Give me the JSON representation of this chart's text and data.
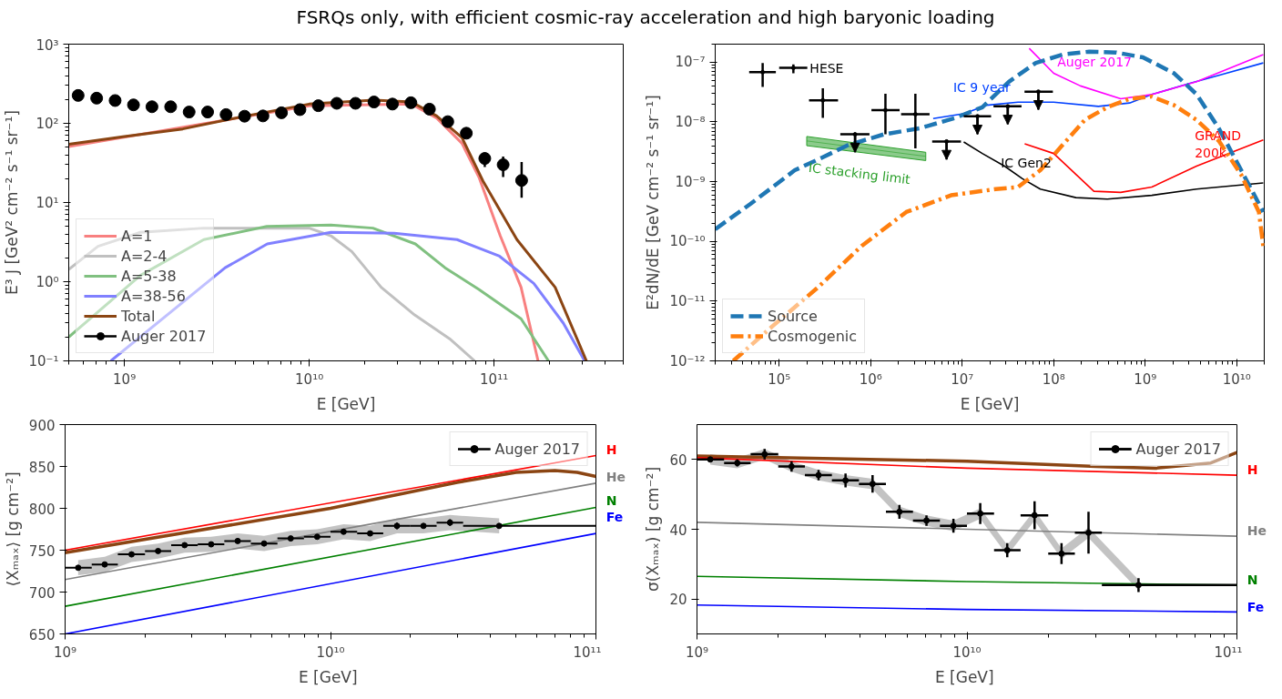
{
  "chart_data": [
    {
      "type": "line",
      "title": "FSRQs only, with efficient cosmic-ray acceleration and high baryonic loading",
      "xlabel": "E [GeV]",
      "ylabel": "E³ J [GeV² cm⁻² s⁻¹ sr⁻¹]",
      "log": "xy",
      "legend": "bottom left",
      "xlim": [
        500000000.0,
        500000000000.0
      ],
      "ylim": [
        0.1,
        1000
      ],
      "xticks": [
        {
          "value": 1000000000.0,
          "label": "10⁹"
        },
        {
          "value": 10000000000.0,
          "label": "10¹⁰"
        },
        {
          "value": 100000000000.0,
          "label": "10¹¹"
        }
      ],
      "yticks": [
        {
          "value": 0.1,
          "label": "10⁻¹"
        },
        {
          "value": 1,
          "label": "10⁰"
        },
        {
          "value": 10,
          "label": "10¹"
        },
        {
          "value": 100,
          "label": "10²"
        },
        {
          "value": 1000,
          "label": "10³"
        }
      ],
      "series": [
        {
          "name": "A=1",
          "color": "#f88080",
          "x": [
            500000000.0,
            10000000000.0,
            35800000000.0,
            48900000000.0,
            67000000000.0,
            82800000000.0,
            108000000000.0,
            140000000000.0,
            173000000000.0
          ],
          "values": [
            51,
            166,
            175,
            117,
            56,
            21,
            3.8,
            0.85,
            0.1
          ]
        },
        {
          "name": "A=2-4",
          "color": "#c0c0c0",
          "x": [
            500000000.0,
            720000000.0,
            1220000000.0,
            2690000000.0,
            10000000000.0,
            13100000000.0,
            17000000000.0,
            24500000000.0,
            37200000000.0,
            57500000000.0,
            78500000000.0
          ],
          "values": [
            1.43,
            2.8,
            4.2,
            4.75,
            4.75,
            3.8,
            2.4,
            0.85,
            0.38,
            0.19,
            0.1
          ]
        },
        {
          "name": "A=5-38",
          "color": "#80c080",
          "x": [
            500000000.0,
            1220000000.0,
            2690000000.0,
            5900000000.0,
            13100000000.0,
            22100000000.0,
            37500000000.0,
            54300000000.0,
            82800000000.0,
            140000000000.0,
            197000000000.0
          ],
          "values": [
            0.2,
            1.2,
            3.4,
            5.0,
            5.2,
            4.75,
            3.0,
            1.5,
            0.8,
            0.34,
            0.1
          ]
        },
        {
          "name": "A=38-56",
          "color": "#8080ff",
          "x": [
            845000000.0,
            3510000000.0,
            5930000000.0,
            13100000000.0,
            28800000000.0,
            63100000000.0,
            107000000000.0,
            164000000000.0,
            237000000000.0,
            309000000000.0
          ],
          "values": [
            0.1,
            1.5,
            3.0,
            4.2,
            4.1,
            3.4,
            2.1,
            0.95,
            0.3,
            0.1
          ]
        },
        {
          "name": "Total",
          "color": "#8b4513",
          "x": [
            500000000.0,
            1000000000.0,
            2070000000.0,
            4560000000.0,
            10000000000.0,
            22400000000.0,
            35800000000.0,
            48900000000.0,
            67000000000.0,
            87000000000.0,
            133000000000.0,
            214000000000.0,
            316000000000.0
          ],
          "values": [
            54.5,
            68,
            85,
            124,
            175,
            197,
            186,
            124,
            66,
            18.8,
            3.4,
            0.85,
            0.1
          ]
        },
        {
          "name": "Auger 2017",
          "type": "scatter",
          "marker": "circle",
          "color": "#000000",
          "x": [
            562000000.0,
            708000000.0,
            891000000.0,
            1120000000.0,
            1410000000.0,
            1780000000.0,
            2240000000.0,
            2820000000.0,
            3550000000.0,
            4470000000.0,
            5620000000.0,
            7080000000.0,
            8910000000.0,
            11200000000.0,
            14100000000.0,
            17800000000.0,
            22400000000.0,
            28200000000.0,
            35500000000.0,
            44700000000.0,
            56200000000.0,
            70800000000.0,
            89100000000.0,
            112000000000.0,
            141000000000.0
          ],
          "values": [
            225,
            208,
            194,
            171,
            162,
            162,
            139,
            139,
            129,
            123,
            124,
            136,
            149,
            167,
            179,
            179,
            186,
            175,
            182,
            151,
            105,
            75,
            36,
            30,
            19
          ],
          "errors": [
            null,
            null,
            null,
            null,
            null,
            null,
            null,
            null,
            null,
            null,
            null,
            null,
            null,
            null,
            null,
            null,
            null,
            null,
            null,
            null,
            null,
            null,
            [
              28,
              43
            ],
            [
              21,
              38
            ],
            [
              11.5,
              32.5
            ]
          ]
        }
      ]
    },
    {
      "type": "line",
      "xlabel": "E [GeV]",
      "ylabel": "E²dN/dE [GeV cm⁻² s⁻¹ sr⁻¹]",
      "log": "xy",
      "legend": "bottom left",
      "xlim": [
        20000.0,
        20000000000.0
      ],
      "ylim": [
        1e-12,
        2e-07
      ],
      "xticks": [
        {
          "value": 100000.0,
          "label": "10⁵"
        },
        {
          "value": 1000000.0,
          "label": "10⁶"
        },
        {
          "value": 10000000.0,
          "label": "10⁷"
        },
        {
          "value": 100000000.0,
          "label": "10⁸"
        },
        {
          "value": 1000000000.0,
          "label": "10⁹"
        },
        {
          "value": 10000000000.0,
          "label": "10¹⁰"
        }
      ],
      "yticks": [
        {
          "value": 1e-12,
          "label": "10⁻¹²"
        },
        {
          "value": 1e-11,
          "label": "10⁻¹¹"
        },
        {
          "value": 1e-10,
          "label": "10⁻¹⁰"
        },
        {
          "value": 1e-09,
          "label": "10⁻⁹"
        },
        {
          "value": 1e-08,
          "label": "10⁻⁸"
        },
        {
          "value": 1e-07,
          "label": "10⁻⁷"
        }
      ],
      "series": [
        {
          "name": "IC stacking limit",
          "type": "line",
          "color": "#2ca02c",
          "x": [
            200000.0,
            4000000.0
          ],
          "values": [
            4.8e-09,
            2.65e-09
          ],
          "lower": [
            4e-09,
            2.25e-09
          ],
          "upper": [
            5.7e-09,
            3.1e-09
          ]
        },
        {
          "name": "IC 9 year",
          "color": "#0040ff",
          "x": [
            4820000.0,
            10600000.0,
            18500000.0,
            40700000.0,
            100000000.0,
            308000000.0,
            675000000.0,
            1180000000.0,
            2900000000.0,
            6380000000.0,
            19500000000.0
          ],
          "values": [
            1.14e-08,
            1.38e-08,
            1.9e-08,
            2.14e-08,
            2.14e-08,
            1.82e-08,
            2.07e-08,
            2.87e-08,
            4.3e-08,
            6e-08,
            9.7e-08
          ]
        },
        {
          "name": "Auger 2017",
          "color": "#ff00ff",
          "x": [
            54000000.0,
            100000000.0,
            196000000.0,
            540000000.0,
            1180000000.0,
            3640000000.0,
            19500000000.0
          ],
          "values": [
            1.7e-07,
            6.5e-08,
            4e-08,
            2.44e-08,
            2.87e-08,
            4.7e-08,
            1.34e-07
          ]
        },
        {
          "name": "GRAND\n200k",
          "color": "#ff0000",
          "x": [
            48200000.0,
            100000000.0,
            157000000.0,
            275000000.0,
            540000000.0,
            1180000000.0,
            3640000000.0,
            19500000000.0
          ],
          "values": [
            4.3e-09,
            2.96e-09,
            1.55e-09,
            6.9e-10,
            6.6e-10,
            8.1e-10,
            1.82e-09,
            5e-09
          ]
        },
        {
          "name": "IC Gen2",
          "color": "#000000",
          "x": [
            10400000.0,
            16600000.0,
            29000000.0,
            45600000.0,
            71400000.0,
            175000000.0,
            385000000.0,
            1180000000.0,
            3640000000.0,
            19500000000.0
          ],
          "values": [
            4.6e-09,
            2.96e-09,
            1.82e-09,
            1.12e-09,
            7.5e-10,
            5.4e-10,
            5.1e-10,
            5.9e-10,
            7.5e-10,
            9.5e-10
          ]
        },
        {
          "name": "Source",
          "color": "#1f77b4",
          "line_style": "dashed",
          "x": [
            20000.0,
            48200.0,
            148000.0,
            290000.0,
            570000.0,
            1400000.0,
            3440000.0,
            8450000.0,
            16600000.0,
            32400000.0,
            63800000.0,
            125000000.0,
            245000000.0,
            482000000.0,
            946000000.0,
            2070000000.0,
            3640000000.0,
            6380000000.0,
            11200000000.0,
            19500000000.0
          ],
          "values": [
            1.6e-10,
            4.2e-10,
            1.55e-09,
            2.5e-09,
            4.1e-09,
            6.2e-09,
            7.8e-09,
            1.17e-08,
            1.76e-08,
            4.7e-08,
            9.7e-08,
            1.34e-07,
            1.5e-07,
            1.45e-07,
            1.2e-07,
            6.5e-08,
            2.9e-08,
            7.8e-09,
            1.55e-09,
            3.1e-10
          ]
        },
        {
          "name": "Cosmogenic",
          "color": "#ff7f0e",
          "line_style": "dashdot",
          "x": [
            31500.0,
            84500.0,
            260000.0,
            798000.0,
            2450000.0,
            7550000.0,
            23200000.0,
            40700000.0,
            71400000.0,
            125000000.0,
            219000000.0,
            385000000.0,
            675000000.0,
            1180000000.0,
            2070000000.0,
            3640000000.0,
            6380000000.0,
            11200000000.0,
            17500000000.0,
            19500000000.0
          ],
          "values": [
            1e-12,
            3.8e-12,
            1.65e-11,
            8.4e-11,
            3.1e-10,
            5.9e-10,
            7.5e-10,
            8.1e-10,
            1.55e-09,
            4.1e-09,
            1.08e-08,
            1.76e-08,
            2.44e-08,
            2.65e-08,
            1.9e-08,
            1.08e-08,
            4.8e-09,
            1.3e-09,
            3.1e-10,
            8.4e-11
          ]
        },
        {
          "name": "HESE",
          "type": "scatter",
          "marker": "circle",
          "color": "#000000",
          "x": [
            66000.0,
            143000.0,
            300000.0,
            1450000.0,
            3080000.0
          ],
          "values": [
            6.8e-08,
            8e-08,
            2.3e-08,
            1.57e-08,
            1.34e-08
          ],
          "errors": [
            [
              3.85e-08,
              9.7e-08
            ],
            [
              6.5e-08,
              9.2e-08
            ],
            [
              1.17e-08,
              3.66e-08
            ],
            [
              6.2e-09,
              2.96e-08
            ],
            [
              3.6e-09,
              2.96e-08
            ]
          ],
          "xerrors": [
            [
              47000.0,
              92000.0
            ],
            [
              100000.0,
              203000.0
            ],
            [
              212000.0,
              440000.0
            ],
            [
              1020000.0,
              2070000.0
            ],
            [
              2150000.0,
              4400000.0
            ]
          ]
        },
        {
          "type": "scatter",
          "marker": "circle",
          "color": "#000000",
          "x": [
            675000.0,
            6750000.0,
            14700000.0,
            31500000.0,
            68000000.0
          ],
          "values": [
            6.2e-09,
            4.7e-09,
            1.24e-08,
            1.82e-08,
            3.2e-08
          ],
          "errors": [
            [
              3.1e-09,
              6.2e-09
            ],
            [
              2.35e-09,
              4.7e-09
            ],
            [
              6.2e-09,
              1.24e-08
            ],
            [
              9.1e-09,
              1.82e-08
            ],
            [
              1.6e-08,
              3.2e-08
            ]
          ],
          "xerrors": [
            [
              466000.0,
              970000.0
            ],
            [
              4700000.0,
              9700000.0
            ],
            [
              10400000.0,
              20700000.0
            ],
            [
              22000000.0,
              44500000.0
            ],
            [
              48000000.0,
              98000000.0
            ]
          ]
        }
      ]
    },
    {
      "type": "line",
      "xlabel": "E  [GeV]",
      "ylabel": "⟨Xₘₐₓ⟩ [g cm⁻²]",
      "log": "x",
      "legend": "top right",
      "xlim": [
        1000000000.0,
        100000000000.0
      ],
      "ylim": [
        650,
        900
      ],
      "xticks": [
        {
          "value": 1000000000.0,
          "label": "10⁹"
        },
        {
          "value": 10000000000.0,
          "label": "10¹⁰"
        },
        {
          "value": 100000000000.0,
          "label": "10¹¹"
        }
      ],
      "yticks": [
        650,
        700,
        750,
        800,
        850,
        900
      ],
      "series": [
        {
          "color": "#8b4513",
          "x": [
            1000000000.0,
            10000000000.0,
            30000000000.0,
            50000000000.0,
            70000000000.0,
            85000000000.0,
            100000000000.0
          ],
          "values": [
            747,
            800,
            831,
            843,
            845,
            843,
            838
          ]
        },
        {
          "name": "H",
          "color": "#ff0000",
          "x": [
            1000000000.0,
            100000000000.0
          ],
          "values": [
            750,
            863
          ]
        },
        {
          "name": "He",
          "color": "#808080",
          "x": [
            1000000000.0,
            100000000000.0
          ],
          "values": [
            715,
            830
          ]
        },
        {
          "name": "N",
          "color": "#008000",
          "x": [
            1000000000.0,
            100000000000.0
          ],
          "values": [
            683,
            801
          ]
        },
        {
          "name": "Fe",
          "color": "#0000ff",
          "x": [
            1000000000.0,
            100000000000.0
          ],
          "values": [
            650,
            770
          ]
        },
        {
          "name": "Auger 2017",
          "type": "scatter",
          "marker": "circle",
          "color": "#000000",
          "x": [
            1120000000.0,
            1410000000.0,
            1780000000.0,
            2240000000.0,
            2820000000.0,
            3550000000.0,
            4470000000.0,
            5620000000.0,
            7080000000.0,
            8910000000.0,
            11200000000.0,
            14100000000.0,
            17800000000.0,
            22400000000.0,
            28200000000.0,
            43200000000.0
          ],
          "values": [
            729,
            733,
            745,
            749,
            756,
            757,
            761,
            758,
            764,
            766,
            772,
            770,
            779,
            779,
            783,
            779
          ],
          "errors": [
            2,
            2,
            2,
            2,
            2,
            2,
            2,
            2,
            2,
            2,
            3,
            2,
            4,
            3,
            4,
            3
          ],
          "xerrors": [
            [
              1000000000.0,
              1260000000.0
            ],
            [
              1260000000.0,
              1580000000.0
            ],
            [
              1580000000.0,
              2000000000.0
            ],
            [
              2000000000.0,
              2510000000.0
            ],
            [
              2510000000.0,
              3160000000.0
            ],
            [
              3160000000.0,
              3980000000.0
            ],
            [
              3980000000.0,
              5010000000.0
            ],
            [
              5010000000.0,
              6310000000.0
            ],
            [
              6310000000.0,
              7940000000.0
            ],
            [
              7940000000.0,
              10000000000.0
            ],
            [
              10000000000.0,
              12600000000.0
            ],
            [
              12600000000.0,
              15800000000.0
            ],
            [
              15800000000.0,
              20000000000.0
            ],
            [
              20000000000.0,
              25100000000.0
            ],
            [
              25100000000.0,
              31600000000.0
            ],
            [
              31600000000.0,
              100000000000.0
            ]
          ],
          "lower": [
            720,
            724,
            736,
            740,
            747,
            748,
            752,
            749,
            755,
            757,
            763,
            761,
            770,
            770,
            774,
            770
          ],
          "upper": [
            738,
            742,
            754,
            758,
            765,
            766,
            770,
            767,
            773,
            775,
            781,
            779,
            788,
            788,
            792,
            788
          ]
        }
      ]
    },
    {
      "type": "line",
      "xlabel": "E  [GeV]",
      "ylabel": "σ(Xₘₐₓ) [g cm⁻²]",
      "log": "x",
      "legend": "top right",
      "xlim": [
        1000000000.0,
        100000000000.0
      ],
      "ylim": [
        10,
        70
      ],
      "xticks": [
        {
          "value": 1000000000.0,
          "label": "10⁹"
        },
        {
          "value": 10000000000.0,
          "label": "10¹⁰"
        },
        {
          "value": 100000000000.0,
          "label": "10¹¹"
        }
      ],
      "yticks": [
        20,
        40,
        60
      ],
      "series": [
        {
          "color": "#8b4513",
          "x": [
            1000000000.0,
            10000000000.0,
            30000000000.0,
            50000000000.0,
            80000000000.0,
            100000000000.0
          ],
          "values": [
            61,
            59.5,
            58,
            57.5,
            59,
            62
          ]
        },
        {
          "name": "H",
          "color": "#ff0000",
          "x": [
            1000000000.0,
            10000000000.0,
            100000000000.0
          ],
          "values": [
            60.5,
            57.5,
            55.5
          ]
        },
        {
          "name": "He",
          "color": "#808080",
          "x": [
            1000000000.0,
            10000000000.0,
            100000000000.0
          ],
          "values": [
            42,
            40,
            38
          ]
        },
        {
          "name": "N",
          "color": "#008000",
          "x": [
            1000000000.0,
            10000000000.0,
            100000000000.0
          ],
          "values": [
            26.5,
            25,
            24
          ]
        },
        {
          "name": "Fe",
          "color": "#0000ff",
          "x": [
            1000000000.0,
            10000000000.0,
            100000000000.0
          ],
          "values": [
            18.3,
            17,
            16.3
          ]
        },
        {
          "name": "Auger 2017",
          "type": "scatter",
          "marker": "circle",
          "color": "#000000",
          "x": [
            1120000000.0,
            1410000000.0,
            1780000000.0,
            2240000000.0,
            2820000000.0,
            3550000000.0,
            4470000000.0,
            5620000000.0,
            7080000000.0,
            8910000000.0,
            11200000000.0,
            14100000000.0,
            17800000000.0,
            22400000000.0,
            28200000000.0,
            43200000000.0
          ],
          "values": [
            60,
            59,
            61.5,
            58,
            55.5,
            54,
            53,
            45,
            42.5,
            41,
            44.5,
            34,
            44,
            33,
            39,
            24
          ],
          "errors": [
            0.5,
            1,
            1.5,
            1.5,
            1.5,
            2,
            2.5,
            2,
            1.5,
            2,
            3,
            2,
            4,
            3,
            6,
            2
          ],
          "xerrors": [
            [
              1000000000.0,
              1260000000.0
            ],
            [
              1260000000.0,
              1580000000.0
            ],
            [
              1580000000.0,
              2000000000.0
            ],
            [
              2000000000.0,
              2510000000.0
            ],
            [
              2510000000.0,
              3160000000.0
            ],
            [
              3160000000.0,
              3980000000.0
            ],
            [
              3980000000.0,
              5010000000.0
            ],
            [
              5010000000.0,
              6310000000.0
            ],
            [
              6310000000.0,
              7940000000.0
            ],
            [
              7940000000.0,
              10000000000.0
            ],
            [
              10000000000.0,
              12600000000.0
            ],
            [
              12600000000.0,
              15800000000.0
            ],
            [
              15800000000.0,
              20000000000.0
            ],
            [
              20000000000.0,
              25100000000.0
            ],
            [
              25100000000.0,
              31600000000.0
            ],
            [
              31600000000.0,
              100000000000.0
            ]
          ],
          "lower": [
            58.5,
            57.5,
            60,
            56.5,
            54,
            52.5,
            51.5,
            43.5,
            41,
            39.5,
            43,
            32.5,
            42.5,
            31.5,
            37.5,
            22.5
          ],
          "upper": [
            61.5,
            60.5,
            63,
            59.5,
            57,
            55.5,
            54.5,
            46.5,
            44,
            42.5,
            46,
            35.5,
            45.5,
            34.5,
            40.5,
            25.5
          ]
        }
      ]
    }
  ]
}
